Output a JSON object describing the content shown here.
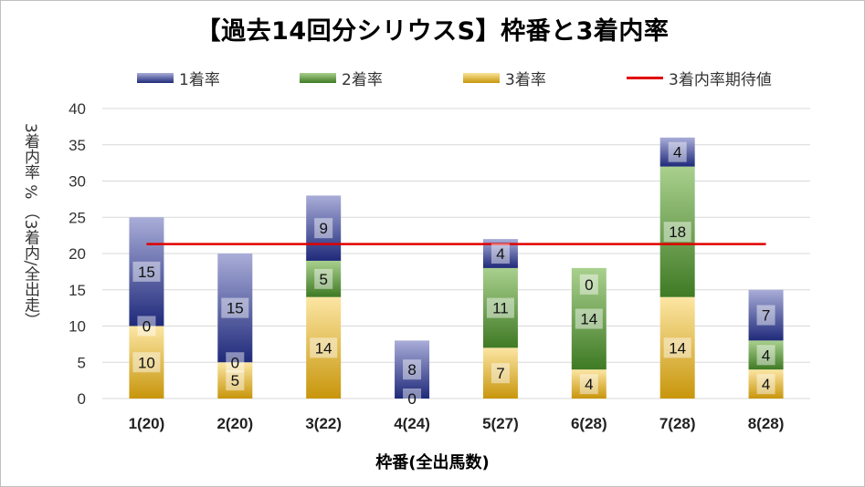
{
  "chart_data": {
    "type": "bar",
    "stacked": true,
    "title": "【過去14回分シリウスS】枠番と3着内率",
    "xlabel": "枠番(全出馬数)",
    "ylabel": "3着内率 % （3着内/全出走）",
    "ylim": [
      0,
      40
    ],
    "yticks": [
      0,
      5,
      10,
      15,
      20,
      25,
      30,
      35,
      40
    ],
    "grid": true,
    "legend_position": "top",
    "categories": [
      "1(20)",
      "2(20)",
      "3(22)",
      "4(24)",
      "5(27)",
      "6(28)",
      "7(28)",
      "8(28)"
    ],
    "series": [
      {
        "name": "1着率",
        "values": [
          15,
          15,
          9,
          8,
          4,
          0,
          4,
          7
        ],
        "labels": [
          "15",
          "15",
          "9",
          "8",
          "4",
          "",
          "4",
          "7"
        ],
        "color": "#2e3a8c"
      },
      {
        "name": "2着率",
        "values": [
          0,
          0,
          5,
          0,
          11,
          14,
          18,
          4
        ],
        "labels": [
          "0",
          "0",
          "5",
          "0",
          "11",
          "14",
          "18",
          "4"
        ],
        "color": "#4e8a2e"
      },
      {
        "name": "3着率",
        "values": [
          10,
          5,
          14,
          0,
          7,
          4,
          14,
          4
        ],
        "labels": [
          "10",
          "5",
          "14",
          "",
          "7",
          "4",
          "14",
          "4"
        ],
        "color": "#c8960c"
      }
    ],
    "top_labels": [
      "",
      "",
      "",
      "",
      "",
      "0",
      "",
      ""
    ],
    "reference_line": {
      "name": "3着内率期待値",
      "value": 21.3,
      "color": "#e00000"
    }
  }
}
